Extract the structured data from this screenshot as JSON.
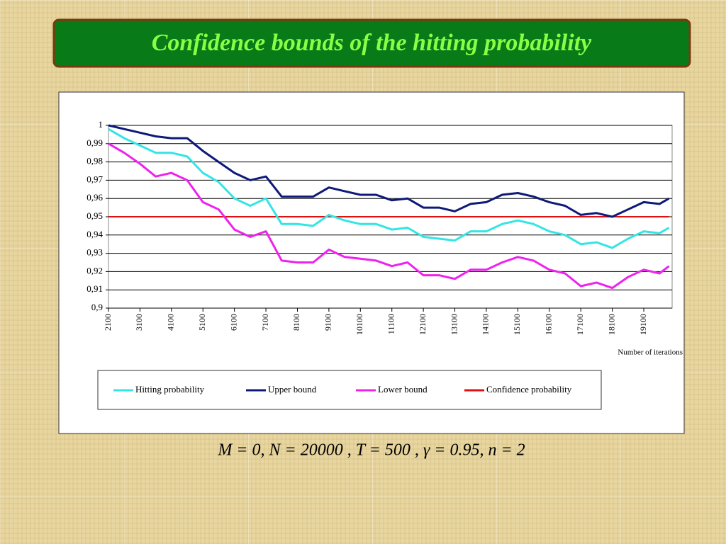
{
  "chart_data": {
    "type": "line",
    "title": "Confidence bounds of the hitting probability",
    "caption": "M = 0, N = 20000 , T = 500 , γ = 0.95, n = 2",
    "x_label": "Number of iterations",
    "x": [
      2100,
      2600,
      3100,
      3600,
      4100,
      4600,
      5100,
      5600,
      6100,
      6600,
      7100,
      7600,
      8100,
      8600,
      9100,
      9600,
      10100,
      10600,
      11100,
      11600,
      12100,
      12600,
      13100,
      13600,
      14100,
      14600,
      15100,
      15600,
      16100,
      16600,
      17100,
      17600,
      18100,
      18600,
      19100,
      19600,
      19900
    ],
    "series": [
      {
        "name": "Hitting probability",
        "color": "#33e5e5",
        "values": [
          0.998,
          0.993,
          0.989,
          0.985,
          0.985,
          0.983,
          0.974,
          0.969,
          0.96,
          0.956,
          0.96,
          0.946,
          0.946,
          0.945,
          0.951,
          0.948,
          0.946,
          0.946,
          0.943,
          0.944,
          0.939,
          0.938,
          0.937,
          0.942,
          0.942,
          0.946,
          0.948,
          0.946,
          0.942,
          0.94,
          0.935,
          0.936,
          0.933,
          0.938,
          0.942,
          0.941,
          0.944
        ]
      },
      {
        "name": "Upper bound",
        "color": "#0d1a78",
        "values": [
          1.0,
          0.998,
          0.996,
          0.994,
          0.993,
          0.993,
          0.986,
          0.98,
          0.974,
          0.97,
          0.972,
          0.961,
          0.961,
          0.961,
          0.966,
          0.964,
          0.962,
          0.962,
          0.959,
          0.96,
          0.955,
          0.955,
          0.953,
          0.957,
          0.958,
          0.962,
          0.963,
          0.961,
          0.958,
          0.956,
          0.951,
          0.952,
          0.95,
          0.954,
          0.958,
          0.957,
          0.96
        ]
      },
      {
        "name": "Lower bound",
        "color": "#ee22ee",
        "values": [
          0.99,
          0.985,
          0.979,
          0.972,
          0.974,
          0.97,
          0.958,
          0.954,
          0.943,
          0.939,
          0.942,
          0.926,
          0.925,
          0.925,
          0.932,
          0.928,
          0.927,
          0.926,
          0.923,
          0.925,
          0.918,
          0.918,
          0.916,
          0.921,
          0.921,
          0.925,
          0.928,
          0.926,
          0.921,
          0.919,
          0.912,
          0.914,
          0.911,
          0.917,
          0.921,
          0.919,
          0.923
        ]
      },
      {
        "name": "Confidence probability",
        "color": "#e01010",
        "values": [
          0.95,
          0.95,
          0.95,
          0.95,
          0.95,
          0.95,
          0.95,
          0.95,
          0.95,
          0.95,
          0.95,
          0.95,
          0.95,
          0.95,
          0.95,
          0.95,
          0.95,
          0.95,
          0.95,
          0.95,
          0.95,
          0.95,
          0.95,
          0.95,
          0.95,
          0.95,
          0.95,
          0.95,
          0.95,
          0.95,
          0.95,
          0.95,
          0.95,
          0.95,
          0.95,
          0.95,
          0.95
        ]
      }
    ],
    "xlim": [
      2100,
      20000
    ],
    "xticks": [
      2100,
      3100,
      4100,
      5100,
      6100,
      7100,
      8100,
      9100,
      10100,
      11100,
      12100,
      13100,
      14100,
      15100,
      16100,
      17100,
      18100,
      19100
    ],
    "ylim": [
      0.9,
      1
    ],
    "yticks": [
      {
        "value": 0.9,
        "label": "0,9"
      },
      {
        "value": 0.91,
        "label": "0,91"
      },
      {
        "value": 0.92,
        "label": "0,92"
      },
      {
        "value": 0.93,
        "label": "0,93"
      },
      {
        "value": 0.94,
        "label": "0,94"
      },
      {
        "value": 0.95,
        "label": "0,95"
      },
      {
        "value": 0.96,
        "label": "0,96"
      },
      {
        "value": 0.97,
        "label": "0,97"
      },
      {
        "value": 0.98,
        "label": "0,98"
      },
      {
        "value": 0.99,
        "label": "0,99"
      },
      1
    ],
    "grid": true
  }
}
